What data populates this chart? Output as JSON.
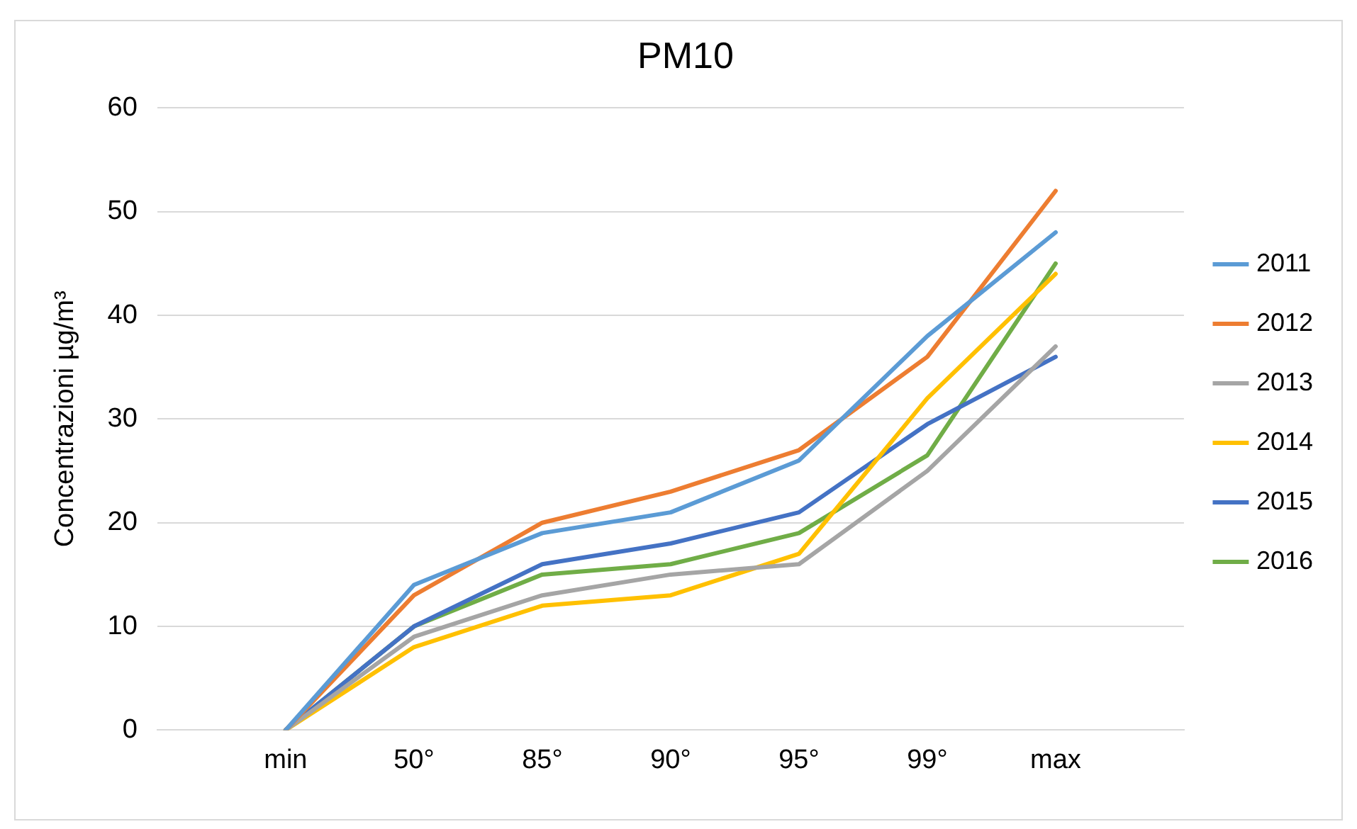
{
  "chart_data": {
    "type": "line",
    "title": "PM10",
    "ylabel": "Concentrazioni µg/m³",
    "categories": [
      null,
      "min",
      "50°",
      "85°",
      "90°",
      "95°",
      "99°",
      "max",
      null
    ],
    "series": [
      {
        "name": "2011",
        "color": "#5b9bd5",
        "values": [
          null,
          0,
          14,
          19,
          21,
          26,
          38,
          48,
          null
        ]
      },
      {
        "name": "2012",
        "color": "#ed7d31",
        "values": [
          null,
          0,
          13,
          20,
          23,
          27,
          36,
          52,
          null
        ]
      },
      {
        "name": "2013",
        "color": "#a5a5a5",
        "values": [
          null,
          0,
          9,
          13,
          15,
          16,
          25,
          37,
          null
        ]
      },
      {
        "name": "2014",
        "color": "#ffc000",
        "values": [
          null,
          0,
          8,
          12,
          13,
          17,
          32,
          44,
          null
        ]
      },
      {
        "name": "2015",
        "color": "#4472c4",
        "values": [
          null,
          0,
          10,
          16,
          18,
          21,
          29.5,
          36,
          null
        ]
      },
      {
        "name": "2016",
        "color": "#70ad47",
        "values": [
          null,
          0,
          10,
          15,
          16,
          19,
          26.5,
          45,
          null
        ]
      }
    ],
    "ylim": [
      0,
      60
    ],
    "yticks": [
      0,
      10,
      20,
      30,
      40,
      50,
      60
    ],
    "grid": "y",
    "legend": "right",
    "marker": "none",
    "line_style": "solid"
  }
}
